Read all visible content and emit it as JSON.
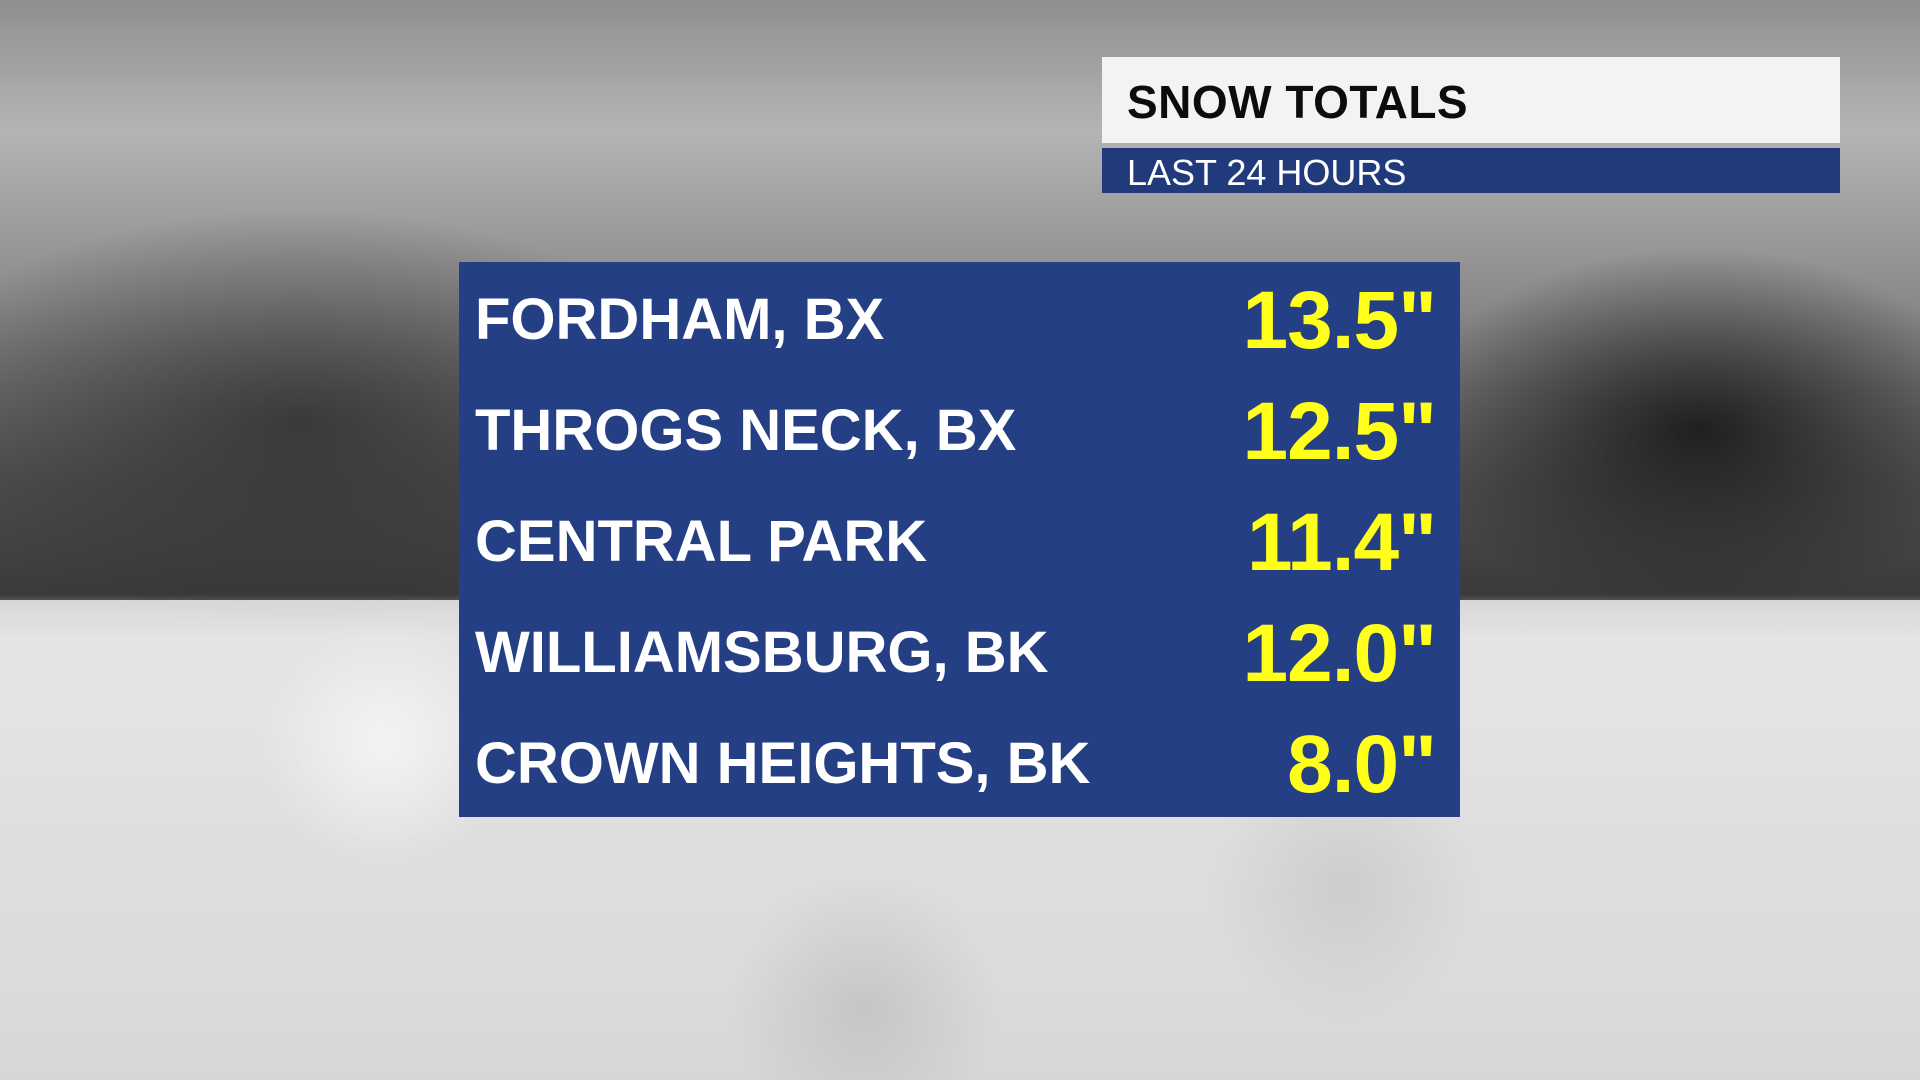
{
  "header": {
    "title": "SNOW TOTALS",
    "subtitle": "LAST 24 HOURS"
  },
  "colors": {
    "panel_blue": "#243f84",
    "value_yellow": "#ffff1a",
    "title_bg": "#f3f3f3"
  },
  "rows": [
    {
      "location": "FORDHAM, BX",
      "total": "13.5\""
    },
    {
      "location": "THROGS NECK, BX",
      "total": "12.5\""
    },
    {
      "location": "CENTRAL PARK",
      "total": "11.4\""
    },
    {
      "location": "WILLIAMSBURG, BK",
      "total": "12.0\""
    },
    {
      "location": "CROWN HEIGHTS, BK",
      "total": "8.0\""
    }
  ]
}
